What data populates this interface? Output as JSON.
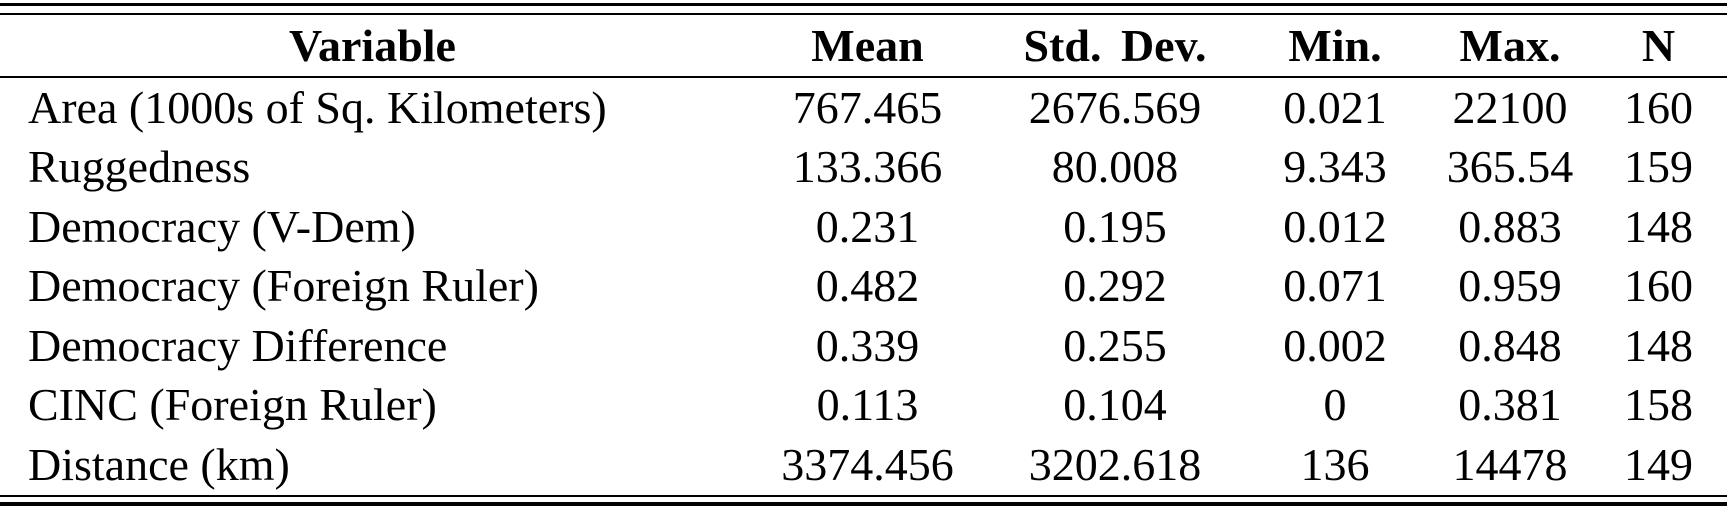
{
  "table": {
    "header": [
      "Variable",
      "Mean",
      "Std. Dev.",
      "Min.",
      "Max.",
      "N"
    ],
    "rows": [
      [
        "Area (1000s of Sq. Kilometers)",
        "767.465",
        "2676.569",
        "0.021",
        "22100",
        "160"
      ],
      [
        "Ruggedness",
        "133.366",
        "80.008",
        "9.343",
        "365.54",
        "159"
      ],
      [
        "Democracy (V-Dem)",
        "0.231",
        "0.195",
        "0.012",
        "0.883",
        "148"
      ],
      [
        "Democracy (Foreign Ruler)",
        "0.482",
        "0.292",
        "0.071",
        "0.959",
        "160"
      ],
      [
        "Democracy Difference",
        "0.339",
        "0.255",
        "0.002",
        "0.848",
        "148"
      ],
      [
        "CINC (Foreign Ruler)",
        "0.113",
        "0.104",
        "0",
        "0.381",
        "158"
      ],
      [
        "Distance (km)",
        "3374.456",
        "3202.618",
        "136",
        "14478",
        "149"
      ]
    ]
  },
  "colors": {
    "text": "#000000",
    "background": "#ffffff",
    "rule": "#000000"
  }
}
